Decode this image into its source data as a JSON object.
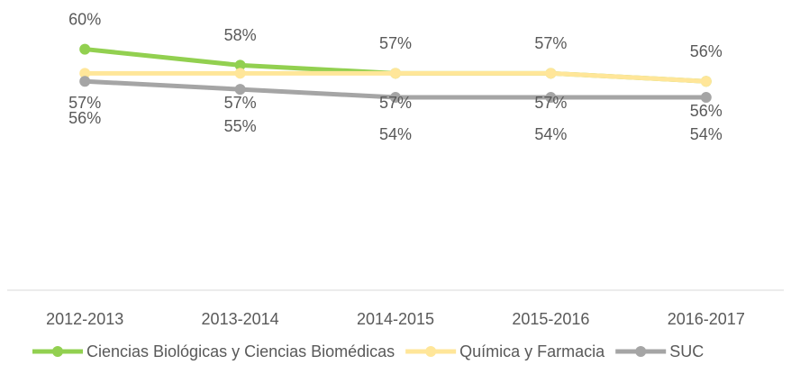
{
  "chart_data": {
    "type": "line",
    "categories": [
      "2012-2013",
      "2013-2014",
      "2014-2015",
      "2015-2016",
      "2016-2017"
    ],
    "series": [
      {
        "name": "Ciencias Biológicas y Ciencias Biomédicas",
        "color": "#92d050",
        "values": [
          60,
          58,
          57,
          57,
          56
        ],
        "value_labels": [
          "60%",
          "58%",
          "57%",
          "57%",
          "56%"
        ]
      },
      {
        "name": "Química y Farmacia",
        "color": "#ffe699",
        "values": [
          57,
          57,
          57,
          57,
          56
        ],
        "value_labels": [
          "57%",
          "57%",
          "57%",
          "57%",
          "56%"
        ]
      },
      {
        "name": "SUC",
        "color": "#a5a5a5",
        "values": [
          56,
          55,
          54,
          54,
          54
        ],
        "value_labels": [
          "56%",
          "55%",
          "54%",
          "54%",
          "54%"
        ]
      }
    ],
    "ylim": [
      30,
      65
    ],
    "legend": "bottom"
  }
}
